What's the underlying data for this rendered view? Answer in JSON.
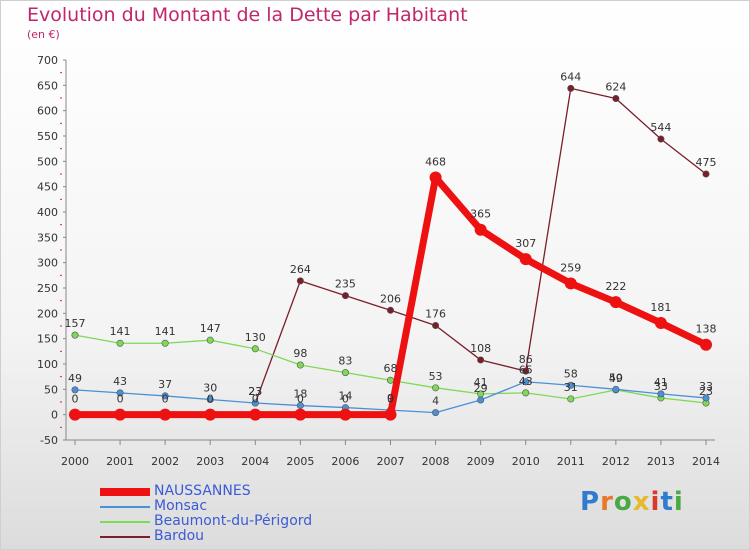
{
  "title": "Evolution du Montant de la Dette par Habitant",
  "subtitle": "(en €)",
  "logo": {
    "text": "Proxiti",
    "letter_colors": [
      "#2e7bd0",
      "#e8792a",
      "#49a942",
      "#e8b92a",
      "#d93a2b",
      "#2e7bd0",
      "#49a942"
    ]
  },
  "chart_data": {
    "type": "line",
    "title": "Evolution du Montant de la Dette par Habitant",
    "ylabel": "(en €)",
    "xlabel": "",
    "ylim": [
      -50,
      700
    ],
    "yticks": [
      -50,
      0,
      50,
      100,
      150,
      200,
      250,
      300,
      350,
      400,
      450,
      500,
      550,
      600,
      650,
      700
    ],
    "x": [
      "2000",
      "2001",
      "2002",
      "2003",
      "2004",
      "2005",
      "2006",
      "2007",
      "2008",
      "2009",
      "2010",
      "2011",
      "2012",
      "2013",
      "2014"
    ],
    "grid": false,
    "legend_position": "bottom-left",
    "series": [
      {
        "name": "Bardou",
        "color": "#7a1e2a",
        "values": [
          null,
          null,
          null,
          null,
          23,
          264,
          235,
          206,
          176,
          108,
          86,
          644,
          624,
          544,
          475
        ]
      },
      {
        "name": "Beaumont-du-Périgord",
        "color": "#7ed957",
        "values": [
          157,
          141,
          141,
          147,
          130,
          98,
          83,
          68,
          53,
          41,
          43,
          31,
          49,
          33,
          23
        ]
      },
      {
        "name": "Monsac",
        "color": "#4a90d9",
        "values": [
          49,
          43,
          37,
          30,
          23,
          18,
          14,
          9,
          4,
          29,
          65,
          58,
          50,
          41,
          33
        ]
      },
      {
        "name": "NAUSSANNES",
        "color": "#ee1111",
        "values": [
          0,
          0,
          0,
          0,
          0,
          0,
          0,
          0,
          468,
          365,
          307,
          259,
          222,
          181,
          138
        ]
      }
    ],
    "legend": [
      "NAUSSANNES",
      "Monsac",
      "Beaumont-du-Périgord",
      "Bardou"
    ]
  }
}
